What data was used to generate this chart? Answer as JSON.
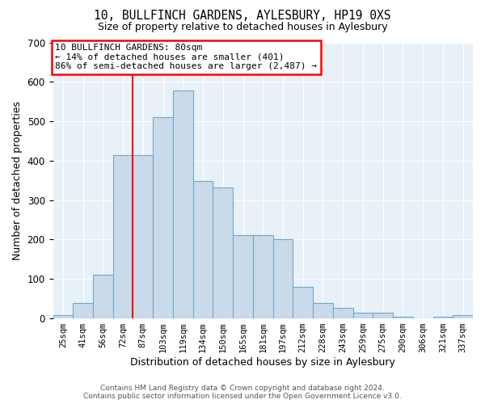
{
  "title_line1": "10, BULLFINCH GARDENS, AYLESBURY, HP19 0XS",
  "title_line2": "Size of property relative to detached houses in Aylesbury",
  "xlabel": "Distribution of detached houses by size in Aylesbury",
  "ylabel": "Number of detached properties",
  "bar_color": "#c9daea",
  "bar_edge_color": "#6fa8cc",
  "categories": [
    "25sqm",
    "41sqm",
    "56sqm",
    "72sqm",
    "87sqm",
    "103sqm",
    "119sqm",
    "134sqm",
    "150sqm",
    "165sqm",
    "181sqm",
    "197sqm",
    "212sqm",
    "228sqm",
    "243sqm",
    "259sqm",
    "275sqm",
    "290sqm",
    "306sqm",
    "321sqm",
    "337sqm"
  ],
  "values": [
    8,
    40,
    110,
    415,
    415,
    510,
    578,
    348,
    333,
    211,
    211,
    200,
    80,
    40,
    27,
    15,
    15,
    5,
    0,
    5,
    8
  ],
  "red_line_x": 3.5,
  "annotation_text": "10 BULLFINCH GARDENS: 80sqm\n← 14% of detached houses are smaller (401)\n86% of semi-detached houses are larger (2,487) →",
  "ylim": [
    0,
    700
  ],
  "yticks": [
    0,
    100,
    200,
    300,
    400,
    500,
    600,
    700
  ],
  "footer_line1": "Contains HM Land Registry data © Crown copyright and database right 2024.",
  "footer_line2": "Contains public sector information licensed under the Open Government Licence v3.0.",
  "plot_background": "#e8f0f8"
}
